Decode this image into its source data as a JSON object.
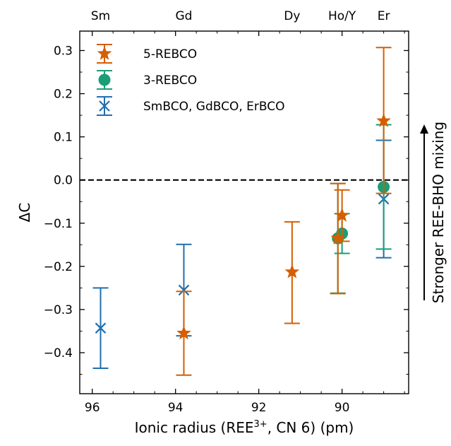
{
  "chart_data": {
    "type": "scatter",
    "title": "",
    "xlabel": "Ionic radius (REE",
    "xlabel_sup": "3+",
    "xlabel_tail": ", CN 6) (pm)",
    "ylabel": "ΔC",
    "xlim": [
      96.3,
      88.4
    ],
    "ylim": [
      -0.495,
      0.345
    ],
    "x_reversed": true,
    "grid": false,
    "legend_position": "top-left",
    "x_ticks": [
      96,
      94,
      92,
      90
    ],
    "x_tick_labels": [
      "96",
      "94",
      "92",
      "90"
    ],
    "y_ticks": [
      -0.4,
      -0.3,
      -0.2,
      -0.1,
      0.0,
      0.1,
      0.2,
      0.3
    ],
    "y_tick_labels": [
      "−0.4",
      "−0.3",
      "−0.2",
      "−0.1",
      "0.0",
      "0.1",
      "0.2",
      "0.3"
    ],
    "top_labels": [
      {
        "text": "Sm",
        "x": 95.8
      },
      {
        "text": "Gd",
        "x": 93.8
      },
      {
        "text": "Dy",
        "x": 91.2
      },
      {
        "text": "Ho/Y",
        "x": 90.0
      },
      {
        "text": "Er",
        "x": 89.0
      }
    ],
    "reference_line": {
      "y": 0.0,
      "style": "dashed"
    },
    "side_annotation": "Stronger REE-BHO mixing",
    "series": [
      {
        "name": "5-REBCO",
        "marker": "star",
        "color": "#d55e00",
        "points": [
          {
            "x": 93.8,
            "y": -0.355,
            "ylow": -0.452,
            "yhigh": -0.258
          },
          {
            "x": 91.2,
            "y": -0.213,
            "ylow": -0.332,
            "yhigh": -0.097
          },
          {
            "x": 90.1,
            "y": -0.135,
            "ylow": -0.263,
            "yhigh": -0.008
          },
          {
            "x": 90.0,
            "y": -0.082,
            "ylow": -0.142,
            "yhigh": -0.023
          },
          {
            "x": 89.0,
            "y": 0.137,
            "ylow": -0.031,
            "yhigh": 0.307
          }
        ]
      },
      {
        "name": "3-REBCO",
        "marker": "circle",
        "color": "#1a9e77",
        "points": [
          {
            "x": 90.1,
            "y": -0.135,
            "ylow": -0.262,
            "yhigh": -0.008
          },
          {
            "x": 90.0,
            "y": -0.124,
            "ylow": -0.17,
            "yhigh": -0.078
          },
          {
            "x": 89.0,
            "y": -0.016,
            "ylow": -0.16,
            "yhigh": 0.128
          }
        ]
      },
      {
        "name": "SmBCO, GdBCO, ErBCO",
        "marker": "x",
        "color": "#1f6fb0",
        "points": [
          {
            "x": 95.8,
            "y": -0.343,
            "ylow": -0.436,
            "yhigh": -0.25
          },
          {
            "x": 93.8,
            "y": -0.255,
            "ylow": -0.361,
            "yhigh": -0.149
          },
          {
            "x": 89.0,
            "y": -0.044,
            "ylow": -0.18,
            "yhigh": 0.092
          }
        ]
      }
    ]
  }
}
